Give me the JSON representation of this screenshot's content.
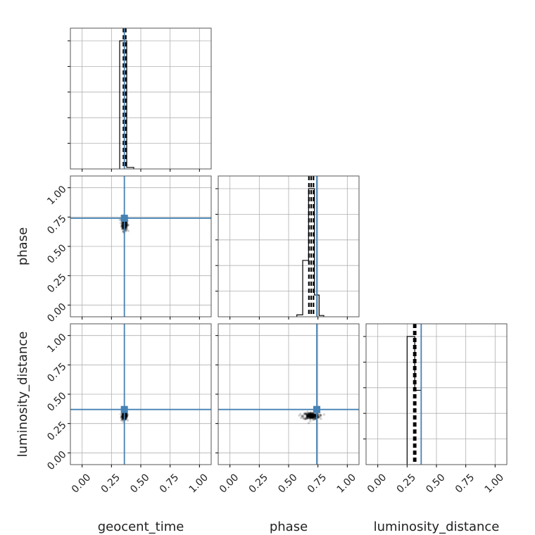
{
  "chart_data": {
    "type": "corner",
    "parameters": [
      "geocent_time",
      "phase",
      "luminosity_distance"
    ],
    "axis_labels": {
      "geocent_time": "geocent_time",
      "phase": "phase",
      "luminosity_distance": "luminosity_distance"
    },
    "range": [
      -0.1,
      1.1
    ],
    "ticks": [
      0.0,
      0.25,
      0.5,
      0.75,
      1.0
    ],
    "tick_labels": [
      "0.00",
      "0.25",
      "0.50",
      "0.75",
      "1.00"
    ],
    "truths": {
      "geocent_time": 0.36,
      "phase": 0.74,
      "luminosity_distance": 0.37
    },
    "quantiles": {
      "geocent_time": [
        0.352,
        0.362,
        0.372
      ],
      "phase": [
        0.673,
        0.692,
        0.712
      ],
      "luminosity_distance": [
        0.307,
        0.315,
        0.323
      ]
    },
    "histograms": {
      "geocent_time": {
        "edges": [
          0.32,
          0.38,
          0.44
        ],
        "counts": [
          1.0,
          0.012
        ]
      },
      "phase": {
        "edges": [
          0.57,
          0.62,
          0.67,
          0.72,
          0.76,
          0.8
        ],
        "counts": [
          0.015,
          0.44,
          1.0,
          0.17,
          0.01
        ]
      },
      "luminosity_distance": {
        "edges": [
          0.25,
          0.315,
          0.37
        ],
        "counts": [
          1.0,
          0.58
        ]
      }
    },
    "grid": true,
    "truth_color": "#4682b4",
    "hist_color": "#000000",
    "grid_color": "#b0b0b0"
  }
}
